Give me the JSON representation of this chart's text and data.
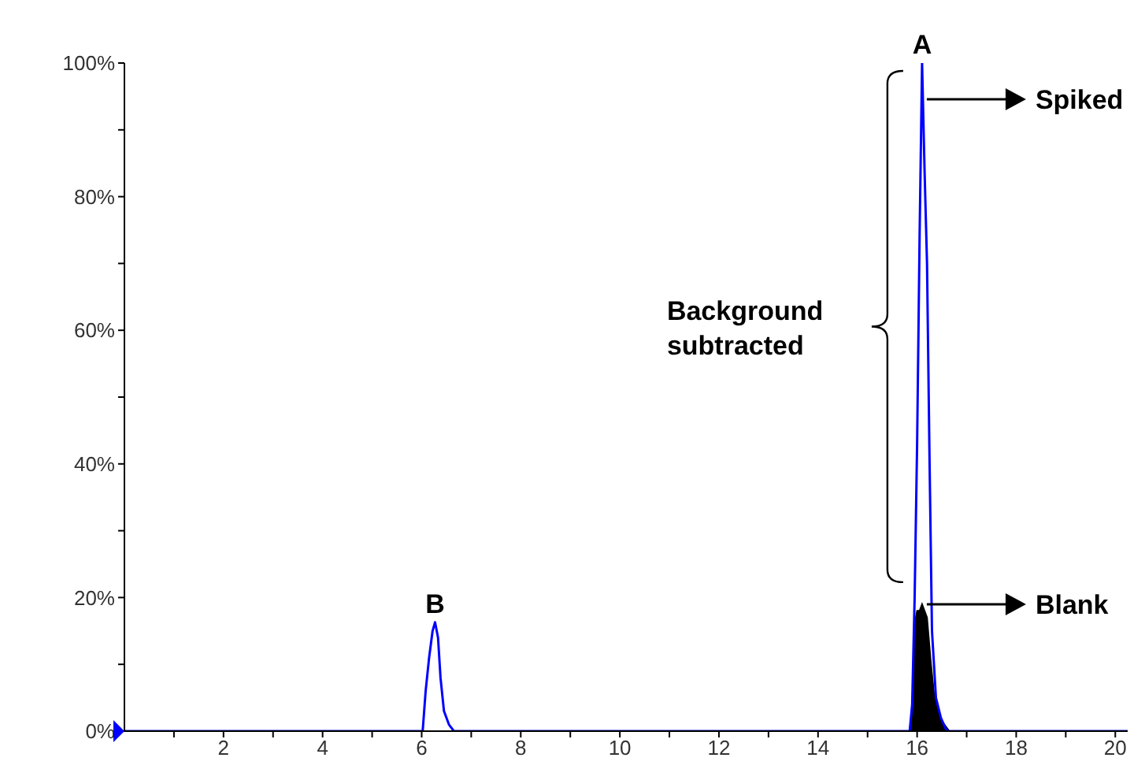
{
  "chart_data": {
    "type": "line",
    "xlim": [
      0,
      20.25
    ],
    "ylim": [
      0,
      100
    ],
    "xticks": [
      {
        "value": 1,
        "label": null
      },
      2,
      {
        "value": 3,
        "label": null
      },
      4,
      {
        "value": 5,
        "label": null
      },
      6,
      {
        "value": 7,
        "label": null
      },
      8,
      {
        "value": 9,
        "label": null
      },
      10,
      {
        "value": 11,
        "label": null
      },
      12,
      {
        "value": 13,
        "label": null
      },
      14,
      {
        "value": 15,
        "label": null
      },
      16,
      {
        "value": 17,
        "label": null
      },
      18,
      {
        "value": 19,
        "label": null
      },
      20
    ],
    "yticks": [
      {
        "value": 0,
        "label": "0%"
      },
      {
        "value": 10,
        "label": null
      },
      {
        "value": 20,
        "label": "20%"
      },
      {
        "value": 30,
        "label": null
      },
      {
        "value": 40,
        "label": "40%"
      },
      {
        "value": 50,
        "label": null
      },
      {
        "value": 60,
        "label": "60%"
      },
      {
        "value": 70,
        "label": null
      },
      {
        "value": 80,
        "label": "80%"
      },
      {
        "value": 90,
        "label": null
      },
      {
        "value": 100,
        "label": "100%"
      }
    ],
    "series": [
      {
        "color": "#0000ff",
        "x": [
          0,
          5.95,
          6.02,
          6.08,
          6.15,
          6.22,
          6.27,
          6.33,
          6.38,
          6.45,
          6.55,
          6.65,
          15.85,
          15.9,
          15.95,
          16.0,
          16.05,
          16.1,
          16.15,
          16.2,
          16.25,
          16.3,
          16.38,
          16.48,
          16.6,
          20.25
        ],
        "values": [
          0,
          0,
          0,
          6,
          11,
          15,
          16.3,
          14,
          8,
          3,
          1,
          0,
          0,
          4,
          20,
          43,
          74,
          100,
          84,
          70,
          41,
          15,
          5,
          2,
          0,
          0
        ]
      },
      {
        "type": "area",
        "color": "#000000",
        "x": [
          15.85,
          15.9,
          15.95,
          16.0,
          16.05,
          16.1,
          16.2,
          16.28,
          16.35,
          16.45,
          16.55,
          16.65
        ],
        "values": [
          0,
          3,
          16,
          18,
          18,
          19,
          17,
          10,
          5,
          2,
          1,
          0
        ]
      }
    ],
    "annotations": [
      {
        "text": "A",
        "x": 16.1,
        "y": 100
      },
      {
        "text": "B",
        "x": 6.27,
        "y": 16.3
      },
      "Spiked",
      "Blank",
      "Background subtracted"
    ]
  }
}
